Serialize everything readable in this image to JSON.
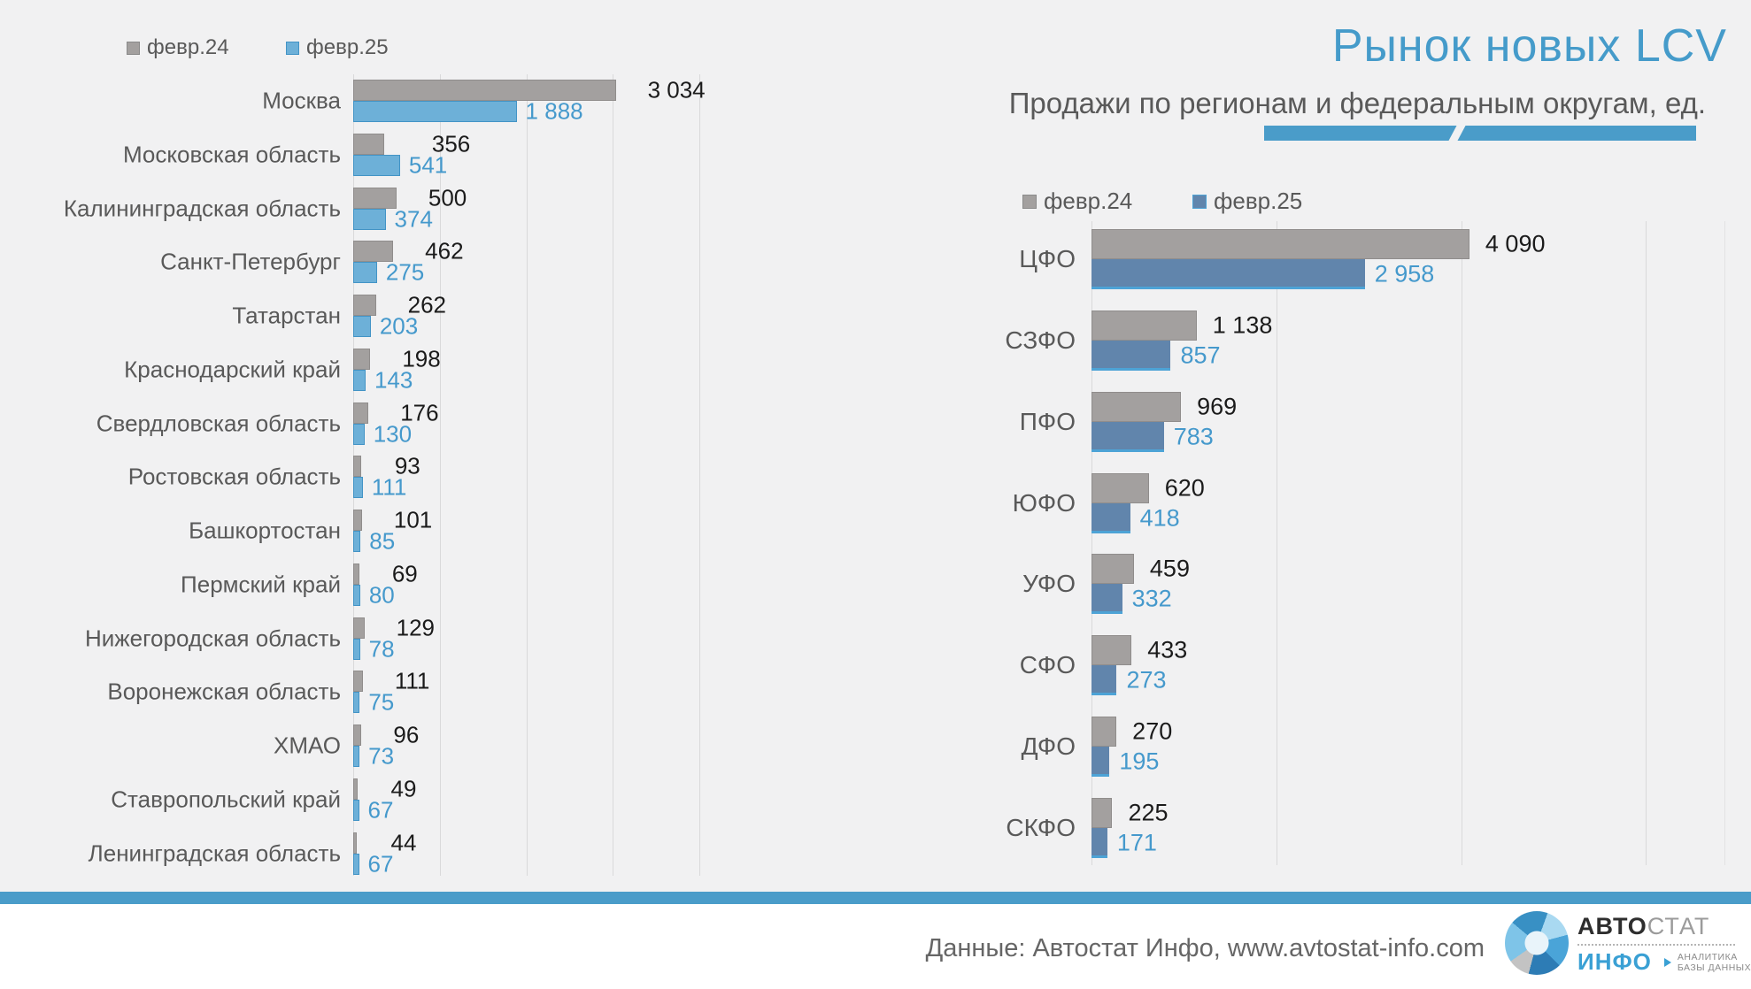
{
  "header": {
    "title": "Рынок новых LCV",
    "subtitle": "Продажи по регионам и федеральным округам, ед."
  },
  "footer": {
    "source": "Данные: Автостат Инфо, www.avtostat-info.com"
  },
  "logo": {
    "brand_part1": "АВТО",
    "brand_part2": "СТАТ",
    "brand_line2": "ИНФО",
    "tagline1": "АНАЛИТИКА",
    "tagline2": "БАЗЫ ДАННЫХ"
  },
  "colors": {
    "background": "#f1f1f2",
    "accent_blue": "#4a9cc9",
    "title_blue": "#459bca",
    "value_blue": "#4599cc",
    "black_label": "#1b1b1b",
    "text_gray": "#595959",
    "gridline": "#d9d9da",
    "gray_bar": "#a3a09f",
    "gray_bar_border": "#908d8c",
    "left_blue_bar": "#6db0d8",
    "left_blue_border": "#4394c6",
    "right_blue_bar": "#6185ac",
    "right_blue_border": "#4da3d6"
  },
  "chart_data": [
    {
      "type": "bar",
      "orientation": "horizontal",
      "title": "Продажи по регионам",
      "legend_position": "top-left",
      "xlim": [
        0,
        4000
      ],
      "gridline_step": 1000,
      "grid": true,
      "categories": [
        "Москва",
        "Московская область",
        "Калининградская область",
        "Санкт-Петербург",
        "Татарстан",
        "Краснодарский край",
        "Свердловская область",
        "Ростовская область",
        "Башкортостан",
        "Пермский край",
        "Нижегородская область",
        "Воронежская область",
        "ХМАО",
        "Ставропольский край",
        "Ленинградская область"
      ],
      "series": [
        {
          "name": "февр.24",
          "color": "#a3a09f",
          "values": [
            3034,
            356,
            500,
            462,
            262,
            198,
            176,
            93,
            101,
            69,
            129,
            111,
            96,
            49,
            44
          ]
        },
        {
          "name": "февр.25",
          "color": "#6db0d8",
          "values": [
            1888,
            541,
            374,
            275,
            203,
            143,
            130,
            111,
            85,
            80,
            78,
            75,
            73,
            67,
            67
          ]
        }
      ]
    },
    {
      "type": "bar",
      "orientation": "horizontal",
      "title": "Продажи по федеральным округам",
      "legend_position": "top-left",
      "xlim": [
        0,
        6850
      ],
      "gridline_step": 2000,
      "grid": true,
      "categories": [
        "ЦФО",
        "СЗФО",
        "ПФО",
        "ЮФО",
        "УФО",
        "СФО",
        "ДФО",
        "СКФО"
      ],
      "series": [
        {
          "name": "февр.24",
          "color": "#a3a09f",
          "values": [
            4090,
            1138,
            969,
            620,
            459,
            433,
            270,
            225
          ]
        },
        {
          "name": "февр.25",
          "color": "#6185ac",
          "values": [
            2958,
            857,
            783,
            418,
            332,
            273,
            195,
            171
          ]
        }
      ]
    }
  ]
}
